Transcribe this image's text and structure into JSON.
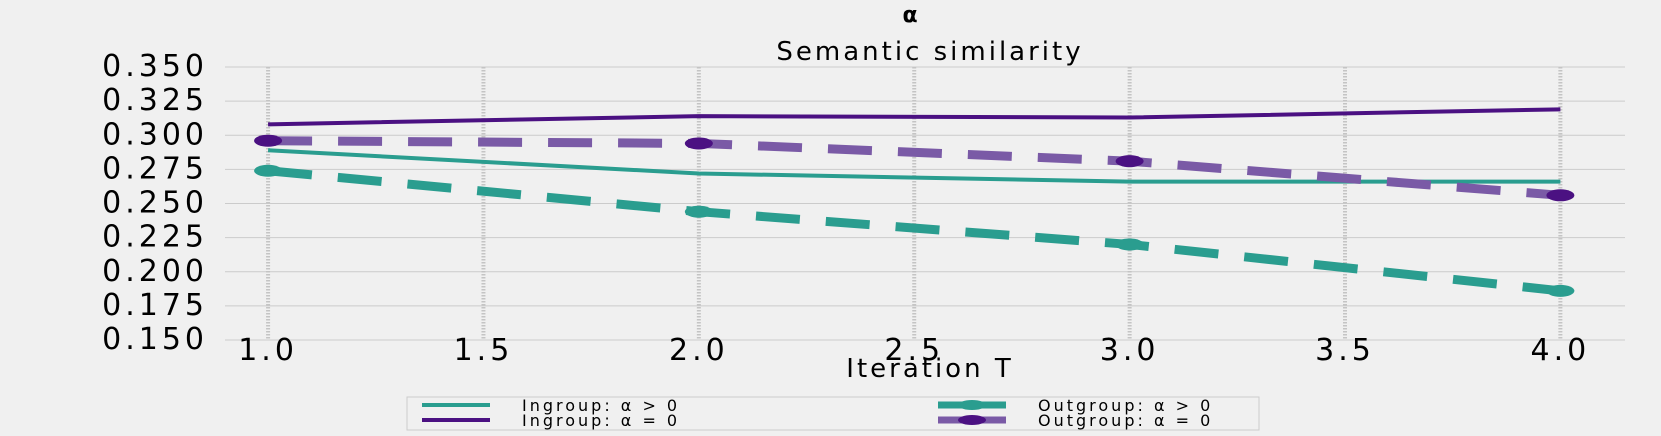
{
  "chart_data": {
    "type": "line",
    "suptitle": "α",
    "title": "Semantic similarity",
    "xlabel": "Iteration T",
    "ylabel": "",
    "x": [
      1,
      2,
      3,
      4
    ],
    "xlim": [
      0.9,
      4.15
    ],
    "ylim": [
      0.15,
      0.35
    ],
    "xticks": [
      "1.0",
      "1.5",
      "2.0",
      "2.5",
      "3.0",
      "3.5",
      "4.0"
    ],
    "yticks": [
      "0.150",
      "0.175",
      "0.200",
      "0.225",
      "0.250",
      "0.275",
      "0.300",
      "0.325",
      "0.350"
    ],
    "grid": true,
    "legend_position": "bottom-center",
    "series": [
      {
        "name": "Ingroup: α > 0",
        "values": [
          0.289,
          0.272,
          0.266,
          0.266
        ],
        "color": "#2a9d8f",
        "style": "solid",
        "marker": false
      },
      {
        "name": "Outgroup: α > 0",
        "values": [
          0.274,
          0.244,
          0.22,
          0.186
        ],
        "color": "#2a9d8f",
        "style": "dashed",
        "marker": true
      },
      {
        "name": "Ingroup: α = 0",
        "values": [
          0.308,
          0.314,
          0.313,
          0.319
        ],
        "color": "#4b1182",
        "style": "solid",
        "marker": false
      },
      {
        "name": "Outgroup: α = 0",
        "values": [
          0.296,
          0.294,
          0.281,
          0.256
        ],
        "color": "#7a5aa6",
        "style": "dashed",
        "marker": true,
        "marker_color": "#4b1182"
      }
    ]
  }
}
